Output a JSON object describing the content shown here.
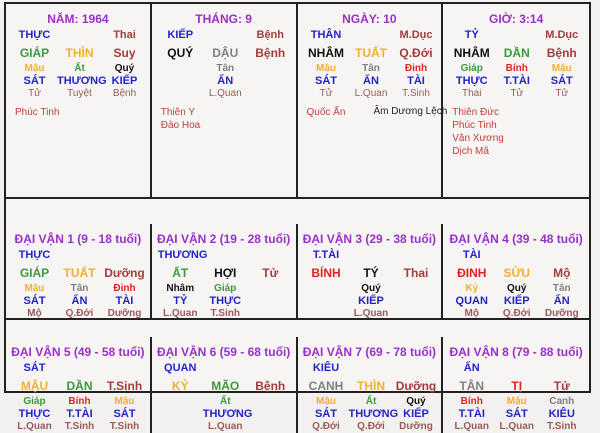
{
  "colors": {
    "title": "#9b2fc9",
    "god": "#2323c8",
    "wood": "#3a9a3a",
    "fire": "#e02222",
    "earth": "#f0b030",
    "metal": "#808080",
    "water": "#111111",
    "status": "#a33c3c",
    "sub_status": "#9a5a5a",
    "star": "#c04040"
  },
  "pillars": [
    {
      "title": "NĂM: 1964",
      "god": "THỰC",
      "top_right": "Thai",
      "stem": {
        "text": "GIÁP",
        "el": "wood"
      },
      "branch": {
        "text": "THÌN",
        "el": "earth"
      },
      "status": "Suy",
      "hidden": [
        {
          "stem": "Mậu",
          "el": "earth",
          "god": "SÁT",
          "status": "Tử"
        },
        {
          "stem": "Ất",
          "el": "wood",
          "god": "THƯƠNG",
          "status": "Tuyệt"
        },
        {
          "stem": "Quý",
          "el": "water",
          "god": "KIẾP",
          "status": "Bệnh"
        }
      ],
      "stars": [
        "Phúc Tinh"
      ],
      "note": ""
    },
    {
      "title": "THÁNG: 9",
      "god": "KIẾP",
      "top_right": "Bệnh",
      "stem": {
        "text": "QUÝ",
        "el": "water"
      },
      "branch": {
        "text": "DẬU",
        "el": "metal"
      },
      "status": "Bệnh",
      "hidden": [
        null,
        {
          "stem": "Tân",
          "el": "metal",
          "god": "ẤN",
          "status": "L.Quan"
        },
        null
      ],
      "stars": [
        "Thiên Y",
        "Đào Hoa"
      ],
      "note": ""
    },
    {
      "title": "NGÀY: 10",
      "god": "THÂN",
      "top_right": "M.Dục",
      "stem": {
        "text": "NHÂM",
        "el": "water"
      },
      "branch": {
        "text": "TUẤT",
        "el": "earth"
      },
      "status": "Q.Đới",
      "hidden": [
        {
          "stem": "Mậu",
          "el": "earth",
          "god": "SÁT",
          "status": "Tử"
        },
        {
          "stem": "Tân",
          "el": "metal",
          "god": "ẤN",
          "status": "L.Quan"
        },
        {
          "stem": "Đinh",
          "el": "fire",
          "god": "TÀI",
          "status": "T.Sinh"
        }
      ],
      "stars": [
        "Quốc Ấn"
      ],
      "note": "Âm Dương Lệch"
    },
    {
      "title": "GIỜ: 3:14",
      "god": "TỶ",
      "top_right": "M.Dục",
      "stem": {
        "text": "NHÂM",
        "el": "water"
      },
      "branch": {
        "text": "DẦN",
        "el": "wood"
      },
      "status": "Bệnh",
      "hidden": [
        {
          "stem": "Giáp",
          "el": "wood",
          "god": "THỰC",
          "status": "Thai"
        },
        {
          "stem": "Bính",
          "el": "fire",
          "god": "T.TÀI",
          "status": "Tử"
        },
        {
          "stem": "Mậu",
          "el": "earth",
          "god": "SÁT",
          "status": "Tử"
        }
      ],
      "stars": [
        "Thiên Đức",
        "Phúc Tinh",
        "Văn Xương",
        "Dịch Mã"
      ],
      "note": ""
    },
    {
      "title": "ĐẠI VẬN 1 (9 - 18 tuổi)",
      "god": "THỰC",
      "top_right": "",
      "stem": {
        "text": "GIÁP",
        "el": "wood"
      },
      "branch": {
        "text": "TUẤT",
        "el": "earth"
      },
      "status": "Dưỡng",
      "hidden": [
        {
          "stem": "Mậu",
          "el": "earth",
          "god": "SÁT",
          "status": "Mộ"
        },
        {
          "stem": "Tân",
          "el": "metal",
          "god": "ẤN",
          "status": "Q.Đới"
        },
        {
          "stem": "Đinh",
          "el": "fire",
          "god": "TÀI",
          "status": "Dưỡng"
        }
      ],
      "stars": [],
      "note": ""
    },
    {
      "title": "ĐẠI VẬN 2 (19 - 28 tuổi)",
      "god": "THƯƠNG",
      "top_right": "",
      "stem": {
        "text": "ẤT",
        "el": "wood"
      },
      "branch": {
        "text": "HỢI",
        "el": "water"
      },
      "status": "Tử",
      "hidden": [
        {
          "stem": "Nhâm",
          "el": "water",
          "god": "TỶ",
          "status": "L.Quan"
        },
        {
          "stem": "Giáp",
          "el": "wood",
          "god": "THỰC",
          "status": "T.Sinh"
        },
        null
      ],
      "stars": [],
      "note": ""
    },
    {
      "title": "ĐẠI VẬN 3 (29 - 38 tuổi)",
      "god": "T.TÀI",
      "top_right": "",
      "stem": {
        "text": "BÍNH",
        "el": "fire"
      },
      "branch": {
        "text": "TÝ",
        "el": "water"
      },
      "status": "Thai",
      "hidden": [
        null,
        {
          "stem": "Quý",
          "el": "water",
          "god": "KIẾP",
          "status": "L.Quan"
        },
        null
      ],
      "stars": [],
      "note": ""
    },
    {
      "title": "ĐẠI VẬN 4 (39 - 48 tuổi)",
      "god": "TÀI",
      "top_right": "",
      "stem": {
        "text": "ĐINH",
        "el": "fire"
      },
      "branch": {
        "text": "SỬU",
        "el": "earth"
      },
      "status": "Mộ",
      "hidden": [
        {
          "stem": "Kỷ",
          "el": "earth",
          "god": "QUAN",
          "status": "Mộ"
        },
        {
          "stem": "Quý",
          "el": "water",
          "god": "KIẾP",
          "status": "Q.Đới"
        },
        {
          "stem": "Tân",
          "el": "metal",
          "god": "ẤN",
          "status": "Dưỡng"
        }
      ],
      "stars": [],
      "note": ""
    },
    {
      "title": "ĐẠI VẬN 5 (49 - 58 tuổi)",
      "god": "SÁT",
      "top_right": "",
      "stem": {
        "text": "MẬU",
        "el": "earth"
      },
      "branch": {
        "text": "DẦN",
        "el": "wood"
      },
      "status": "T.Sinh",
      "hidden": [
        {
          "stem": "Giáp",
          "el": "wood",
          "god": "THỰC",
          "status": "L.Quan"
        },
        {
          "stem": "Bính",
          "el": "fire",
          "god": "T.TÀI",
          "status": "T.Sinh"
        },
        {
          "stem": "Mậu",
          "el": "earth",
          "god": "SÁT",
          "status": "T.Sinh"
        }
      ],
      "stars": [],
      "note": ""
    },
    {
      "title": "ĐẠI VẬN 6 (59 - 68 tuổi)",
      "god": "QUAN",
      "top_right": "",
      "stem": {
        "text": "KỶ",
        "el": "earth"
      },
      "branch": {
        "text": "MÃO",
        "el": "wood"
      },
      "status": "Bệnh",
      "hidden": [
        null,
        {
          "stem": "Ất",
          "el": "wood",
          "god": "THƯƠNG",
          "status": "L.Quan"
        },
        null
      ],
      "stars": [],
      "note": ""
    },
    {
      "title": "ĐẠI VẬN 7 (69 - 78 tuổi)",
      "god": "KIÊU",
      "top_right": "",
      "stem": {
        "text": "CANH",
        "el": "metal"
      },
      "branch": {
        "text": "THÌN",
        "el": "earth"
      },
      "status": "Dưỡng",
      "hidden": [
        {
          "stem": "Mậu",
          "el": "earth",
          "god": "SÁT",
          "status": "Q.Đới"
        },
        {
          "stem": "Ất",
          "el": "wood",
          "god": "THƯƠNG",
          "status": "Q.Đới"
        },
        {
          "stem": "Quý",
          "el": "water",
          "god": "KIẾP",
          "status": "Dưỡng"
        }
      ],
      "stars": [],
      "note": ""
    },
    {
      "title": "ĐẠI VẬN 8 (79 - 88 tuổi)",
      "god": "ẤN",
      "top_right": "",
      "stem": {
        "text": "TÂN",
        "el": "metal"
      },
      "branch": {
        "text": "TỊ",
        "el": "fire"
      },
      "status": "Tử",
      "hidden": [
        {
          "stem": "Bính",
          "el": "fire",
          "god": "T.TÀI",
          "status": "L.Quan"
        },
        {
          "stem": "Mậu",
          "el": "earth",
          "god": "SÁT",
          "status": "L.Quan"
        },
        {
          "stem": "Canh",
          "el": "metal",
          "god": "KIÊU",
          "status": "T.Sinh"
        }
      ],
      "stars": [],
      "note": ""
    }
  ]
}
